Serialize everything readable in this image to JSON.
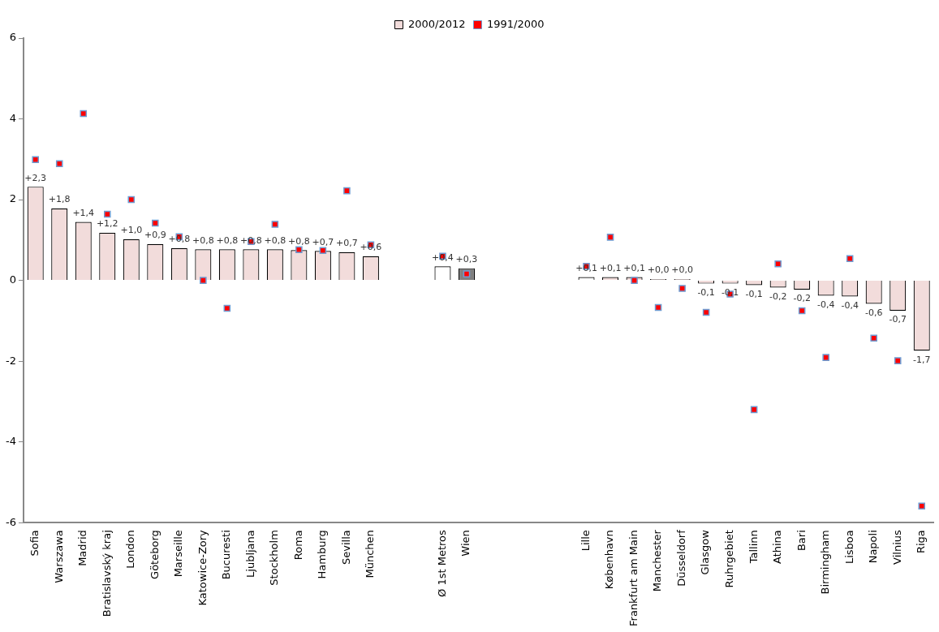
{
  "chart_data": {
    "type": "bar",
    "categories": [
      "Sofia",
      "Warszawa",
      "Madrid",
      "Bratislavský kraj",
      "London",
      "Göteborg",
      "Marseille",
      "Katowice-Zory",
      "Bucuresti",
      "Ljubljana",
      "Stockholm",
      "Roma",
      "Hamburg",
      "Sevilla",
      "München",
      null,
      null,
      "Ø 1st Metros",
      "Wien",
      null,
      null,
      null,
      null,
      "Lille",
      "København",
      "Frankfurt am Main",
      "Manchester",
      "Düsseldorf",
      "Glasgow",
      "Ruhrgebiet",
      "Tallinn",
      "Athina",
      "Bari",
      "Birmingham",
      "Lisboa",
      "Napoli",
      "Vilnius",
      "Riga"
    ],
    "series": [
      {
        "name": "2000/2012",
        "color": "#f2dcdb",
        "colors": [
          "#f2dcdb",
          "#f2dcdb",
          "#f2dcdb",
          "#f2dcdb",
          "#f2dcdb",
          "#f2dcdb",
          "#f2dcdb",
          "#f2dcdb",
          "#f2dcdb",
          "#f2dcdb",
          "#f2dcdb",
          "#f2dcdb",
          "#f2dcdb",
          "#f2dcdb",
          "#f2dcdb",
          null,
          null,
          "#ffffff",
          "#808080",
          null,
          null,
          null,
          null,
          "#ffffff",
          "#f2dcdb",
          "#f2dcdb",
          "#f2dcdb",
          "#f2dcdb",
          "#f2dcdb",
          "#f2dcdb",
          "#f2dcdb",
          "#f2dcdb",
          "#f2dcdb",
          "#f2dcdb",
          "#f2dcdb",
          "#f2dcdb",
          "#f2dcdb",
          "#f2dcdb"
        ],
        "values": [
          2.32,
          1.78,
          1.45,
          1.18,
          1.02,
          0.9,
          0.8,
          0.77,
          0.77,
          0.77,
          0.77,
          0.75,
          0.73,
          0.7,
          0.6,
          null,
          null,
          0.35,
          0.3,
          null,
          null,
          null,
          null,
          0.08,
          0.08,
          0.08,
          0.03,
          0.03,
          -0.08,
          -0.08,
          -0.12,
          -0.18,
          -0.23,
          -0.38,
          -0.4,
          -0.58,
          -0.75,
          -1.74
        ],
        "value_labels": [
          "+2,3",
          "+1,8",
          "+1,4",
          "+1,2",
          "+1,0",
          "+0,9",
          "+0,8",
          "+0,8",
          "+0,8",
          "+0,8",
          "+0,8",
          "+0,8",
          "+0,7",
          "+0,7",
          "+0,6",
          null,
          null,
          "+0,4",
          "+0,3",
          null,
          null,
          null,
          null,
          "+0,1",
          "+0,1",
          "+0,1",
          "+0,0",
          "+0,0",
          "-0,1",
          "-0,1",
          "-0,1",
          "-0,2",
          "-0,2",
          "-0,4",
          "-0,4",
          "-0,6",
          "-0,7",
          "-1,7"
        ]
      },
      {
        "name": "1991/2000",
        "type": "scatter",
        "color": "#ff0000",
        "marker": "square",
        "x": [
          "Sofia",
          "Warszawa",
          "Madrid",
          "Bratislavský kraj",
          "London",
          "Göteborg",
          "Marseille",
          "Katowice-Zory",
          "Bucuresti",
          "Ljubljana",
          "Stockholm",
          "Roma",
          "Hamburg",
          "Sevilla",
          "München",
          "Ø 1st Metros",
          "Wien",
          "Lille",
          "København",
          "Frankfurt am Main",
          "Manchester",
          "Düsseldorf",
          "Glasgow",
          "Ruhrgebiet",
          "Tallinn",
          "Athina",
          "Bari",
          "Birmingham",
          "Lisboa",
          "Napoli",
          "Vilnius",
          "Riga"
        ],
        "values": [
          2.99,
          2.89,
          4.13,
          1.64,
          2.0,
          1.42,
          1.08,
          0.0,
          -0.69,
          0.96,
          1.39,
          0.76,
          0.74,
          2.22,
          0.88,
          0.6,
          0.16,
          0.35,
          1.07,
          0.0,
          -0.67,
          -0.2,
          -0.79,
          -0.34,
          -3.2,
          0.41,
          -0.75,
          -1.91,
          0.54,
          -1.43,
          -1.99,
          -5.59
        ]
      }
    ],
    "ylim": [
      -6,
      6
    ],
    "yticks": [
      -6,
      -4,
      -2,
      0,
      2,
      4,
      6
    ],
    "grid": false,
    "legend": "top"
  }
}
